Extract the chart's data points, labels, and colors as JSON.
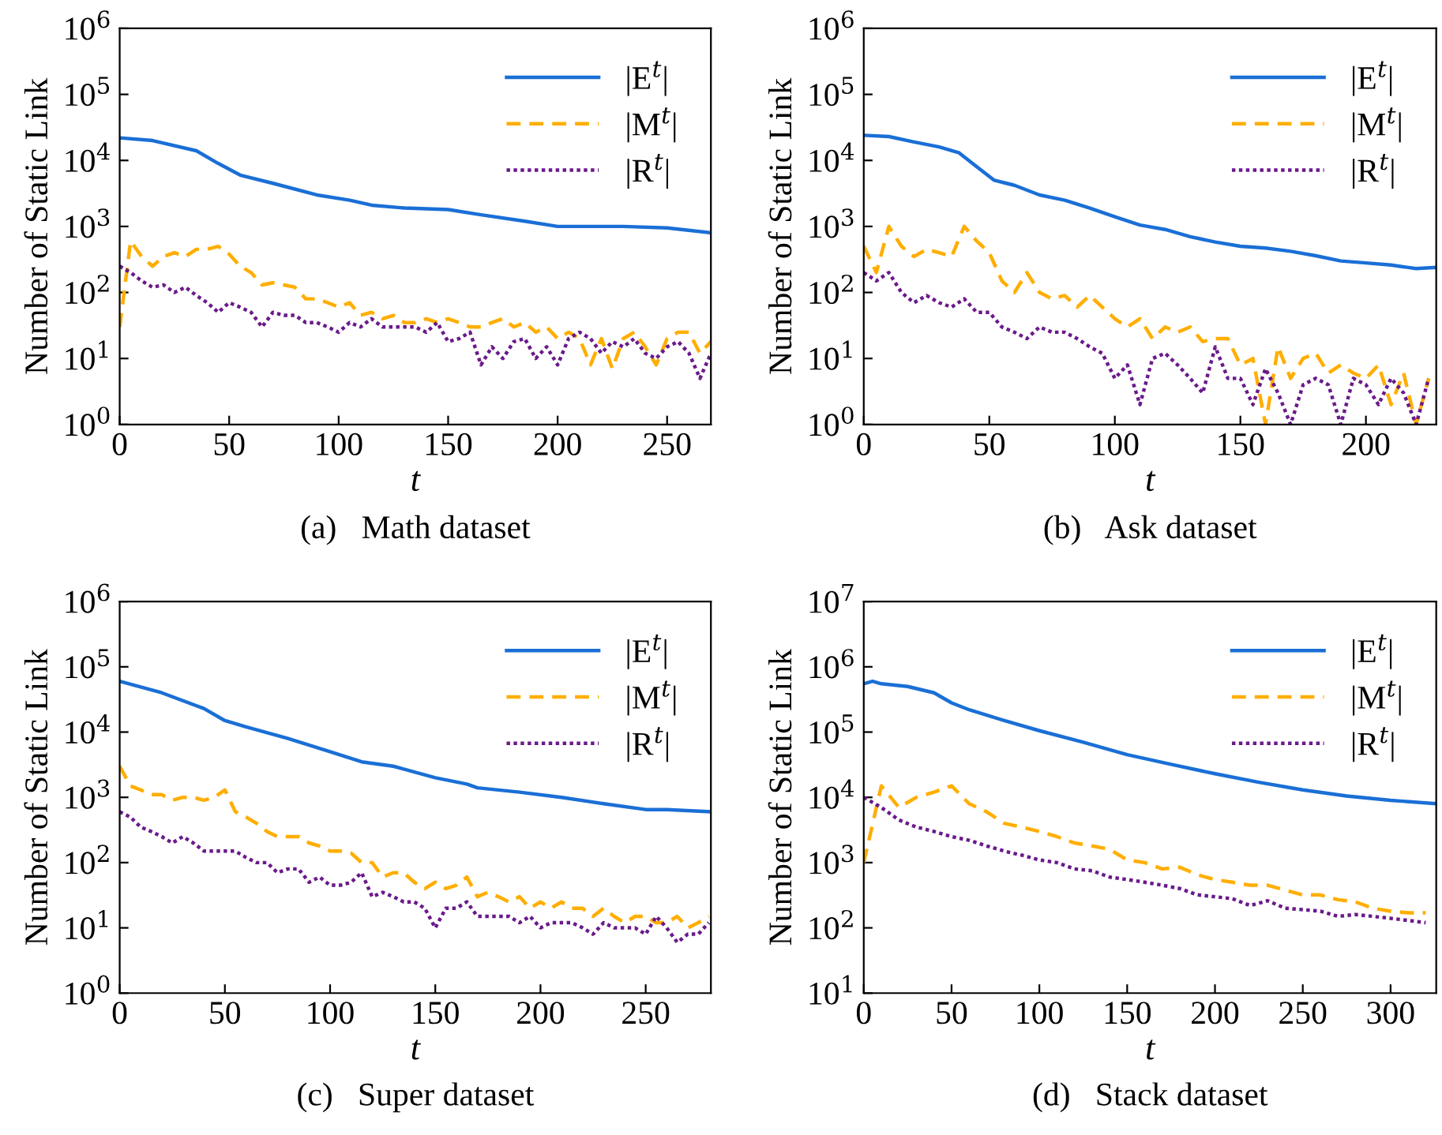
{
  "chart_data": [
    {
      "type": "line",
      "title": "(a)   Math dataset",
      "xlabel": "t",
      "ylabel": "Number of Static Link",
      "log": "y",
      "legend": "top right",
      "grid": false,
      "xlim": [
        0,
        270
      ],
      "xticks": [
        0,
        50,
        100,
        150,
        200,
        250
      ],
      "ylim": [
        1,
        1000000
      ],
      "yticks": [
        {
          "value": 1,
          "label": "10$^{0}$"
        },
        {
          "value": 10,
          "label": "10$^{1}$"
        },
        {
          "value": 100,
          "label": "10$^{2}$"
        },
        {
          "value": 1000,
          "label": "10$^{3}$"
        },
        {
          "value": 10000,
          "label": "10$^{4}$"
        },
        {
          "value": 100000,
          "label": "10$^{5}$"
        },
        {
          "value": 1000000,
          "label": "10$^{6}$"
        }
      ],
      "series": [
        {
          "name": "|E$^{t}$|",
          "color": "#1a6fd6",
          "line_style": "solid",
          "x": [
            0,
            15,
            35,
            45,
            55,
            70,
            90,
            105,
            115,
            130,
            150,
            165,
            185,
            200,
            230,
            250,
            270
          ],
          "values": [
            22000,
            20000,
            14000,
            9000,
            6000,
            4500,
            3000,
            2500,
            2100,
            1900,
            1800,
            1500,
            1200,
            1000,
            1000,
            950,
            800
          ]
        },
        {
          "name": "|M$^{t}$|",
          "color": "#ffae00",
          "line_style": "dashed",
          "x": [
            0,
            5,
            10,
            15,
            20,
            25,
            30,
            35,
            40,
            45,
            50,
            55,
            60,
            65,
            70,
            75,
            80,
            85,
            90,
            95,
            100,
            105,
            110,
            115,
            120,
            125,
            130,
            135,
            140,
            145,
            150,
            155,
            160,
            165,
            170,
            175,
            180,
            185,
            190,
            195,
            200,
            205,
            210,
            215,
            220,
            225,
            230,
            235,
            240,
            245,
            250,
            255,
            260,
            265,
            270
          ],
          "values": [
            30,
            600,
            350,
            250,
            350,
            400,
            350,
            450,
            450,
            500,
            380,
            250,
            200,
            130,
            140,
            130,
            120,
            80,
            80,
            70,
            60,
            70,
            45,
            50,
            40,
            45,
            35,
            35,
            40,
            35,
            40,
            35,
            30,
            30,
            35,
            40,
            30,
            35,
            25,
            30,
            20,
            25,
            20,
            8,
            20,
            7,
            20,
            25,
            15,
            8,
            20,
            25,
            25,
            12,
            18
          ]
        },
        {
          "name": "|R$^{t}$|",
          "color": "#6a1a8a",
          "line_style": "dotted",
          "x": [
            0,
            5,
            10,
            15,
            20,
            25,
            30,
            35,
            40,
            45,
            50,
            55,
            60,
            65,
            70,
            75,
            80,
            85,
            90,
            95,
            100,
            105,
            110,
            115,
            120,
            125,
            130,
            135,
            140,
            145,
            150,
            155,
            160,
            165,
            170,
            175,
            180,
            185,
            190,
            195,
            200,
            205,
            210,
            215,
            220,
            225,
            230,
            235,
            240,
            245,
            250,
            255,
            260,
            265,
            270
          ],
          "values": [
            250,
            200,
            150,
            120,
            130,
            100,
            120,
            90,
            70,
            50,
            70,
            60,
            50,
            30,
            50,
            45,
            45,
            35,
            35,
            30,
            25,
            35,
            30,
            40,
            30,
            30,
            30,
            30,
            25,
            35,
            18,
            20,
            25,
            8,
            15,
            10,
            18,
            20,
            10,
            15,
            8,
            20,
            25,
            20,
            12,
            18,
            15,
            20,
            12,
            10,
            15,
            18,
            12,
            5,
            12
          ]
        }
      ]
    },
    {
      "type": "line",
      "title": "(b)   Ask dataset",
      "xlabel": "t",
      "ylabel": "Number of Static Link",
      "log": "y",
      "legend": "top right",
      "grid": false,
      "xlim": [
        0,
        228
      ],
      "xticks": [
        0,
        50,
        100,
        150,
        200
      ],
      "ylim": [
        1,
        1000000
      ],
      "yticks": [
        {
          "value": 1,
          "label": "10$^{0}$"
        },
        {
          "value": 10,
          "label": "10$^{1}$"
        },
        {
          "value": 100,
          "label": "10$^{2}$"
        },
        {
          "value": 1000,
          "label": "10$^{3}$"
        },
        {
          "value": 10000,
          "label": "10$^{4}$"
        },
        {
          "value": 100000,
          "label": "10$^{5}$"
        },
        {
          "value": 1000000,
          "label": "10$^{6}$"
        }
      ],
      "series": [
        {
          "name": "|E$^{t}$|",
          "color": "#1a6fd6",
          "line_style": "solid",
          "x": [
            0,
            10,
            20,
            30,
            38,
            45,
            52,
            60,
            70,
            80,
            90,
            100,
            110,
            120,
            130,
            140,
            150,
            160,
            170,
            180,
            190,
            200,
            210,
            220,
            228
          ],
          "values": [
            24000,
            23000,
            19000,
            16000,
            13000,
            8000,
            5000,
            4200,
            3000,
            2500,
            1900,
            1400,
            1050,
            900,
            700,
            580,
            500,
            470,
            420,
            360,
            300,
            280,
            260,
            230,
            240
          ]
        },
        {
          "name": "|M$^{t}$|",
          "color": "#ffae00",
          "line_style": "dashed",
          "x": [
            0,
            5,
            10,
            15,
            20,
            25,
            30,
            35,
            40,
            45,
            50,
            55,
            60,
            65,
            70,
            75,
            80,
            85,
            90,
            95,
            100,
            105,
            110,
            115,
            120,
            125,
            130,
            135,
            140,
            145,
            150,
            155,
            160,
            165,
            170,
            175,
            180,
            185,
            190,
            195,
            200,
            205,
            210,
            215,
            220,
            225
          ],
          "values": [
            500,
            200,
            1000,
            500,
            350,
            450,
            400,
            350,
            1000,
            600,
            400,
            150,
            100,
            200,
            100,
            80,
            90,
            60,
            90,
            60,
            40,
            30,
            40,
            20,
            30,
            25,
            30,
            18,
            20,
            20,
            8,
            10,
            1,
            15,
            5,
            10,
            12,
            6,
            8,
            6,
            5,
            8,
            2,
            6,
            1,
            5
          ]
        },
        {
          "name": "|R$^{t}$|",
          "color": "#6a1a8a",
          "line_style": "dotted",
          "x": [
            0,
            5,
            10,
            15,
            20,
            25,
            30,
            35,
            40,
            45,
            50,
            55,
            60,
            65,
            70,
            75,
            80,
            85,
            90,
            95,
            100,
            105,
            110,
            115,
            120,
            125,
            130,
            135,
            140,
            145,
            150,
            155,
            160,
            165,
            170,
            175,
            180,
            185,
            190,
            195,
            200,
            205,
            210,
            215,
            220,
            225
          ],
          "values": [
            200,
            150,
            200,
            100,
            70,
            90,
            70,
            60,
            80,
            50,
            50,
            30,
            25,
            20,
            30,
            25,
            25,
            20,
            15,
            12,
            5,
            8,
            2,
            10,
            12,
            8,
            5,
            3,
            15,
            5,
            5,
            2,
            7,
            3,
            1,
            4,
            5,
            4,
            1,
            5,
            4,
            2,
            5,
            3,
            1,
            5
          ]
        }
      ]
    },
    {
      "type": "line",
      "title": "(c)   Super dataset",
      "xlabel": "t",
      "ylabel": "Number of Static Link",
      "log": "y",
      "legend": "top right",
      "grid": false,
      "xlim": [
        0,
        281
      ],
      "xticks": [
        0,
        50,
        100,
        150,
        200,
        250
      ],
      "ylim": [
        1,
        1000000
      ],
      "yticks": [
        {
          "value": 1,
          "label": "10$^{0}$"
        },
        {
          "value": 10,
          "label": "10$^{1}$"
        },
        {
          "value": 100,
          "label": "10$^{2}$"
        },
        {
          "value": 1000,
          "label": "10$^{3}$"
        },
        {
          "value": 10000,
          "label": "10$^{4}$"
        },
        {
          "value": 100000,
          "label": "10$^{5}$"
        },
        {
          "value": 1000000,
          "label": "10$^{6}$"
        }
      ],
      "series": [
        {
          "name": "|E$^{t}$|",
          "color": "#1a6fd6",
          "line_style": "solid",
          "x": [
            0,
            20,
            40,
            50,
            60,
            80,
            100,
            115,
            130,
            150,
            165,
            170,
            190,
            210,
            230,
            250,
            260,
            281
          ],
          "values": [
            60000,
            40000,
            23000,
            15000,
            12000,
            8000,
            5000,
            3500,
            3000,
            2000,
            1600,
            1400,
            1200,
            1000,
            800,
            650,
            650,
            600
          ]
        },
        {
          "name": "|M$^{t}$|",
          "color": "#ffae00",
          "line_style": "dashed",
          "x": [
            0,
            5,
            10,
            15,
            20,
            25,
            30,
            35,
            40,
            45,
            50,
            55,
            60,
            65,
            70,
            75,
            80,
            85,
            90,
            95,
            100,
            105,
            110,
            115,
            120,
            125,
            130,
            135,
            140,
            145,
            150,
            155,
            160,
            165,
            170,
            175,
            180,
            185,
            190,
            195,
            200,
            205,
            210,
            215,
            220,
            225,
            230,
            235,
            240,
            245,
            250,
            255,
            260,
            265,
            270,
            275,
            280
          ],
          "values": [
            3000,
            1500,
            1300,
            1100,
            1100,
            900,
            1000,
            1000,
            900,
            1000,
            1300,
            600,
            500,
            400,
            300,
            250,
            250,
            250,
            200,
            180,
            150,
            150,
            140,
            100,
            100,
            60,
            70,
            70,
            50,
            40,
            50,
            40,
            45,
            60,
            30,
            35,
            30,
            25,
            30,
            20,
            25,
            20,
            25,
            20,
            20,
            15,
            20,
            15,
            12,
            15,
            15,
            12,
            12,
            15,
            10,
            12,
            15
          ]
        },
        {
          "name": "|R$^{t}$|",
          "color": "#6a1a8a",
          "line_style": "dotted",
          "x": [
            0,
            5,
            10,
            15,
            20,
            25,
            30,
            35,
            40,
            45,
            50,
            55,
            60,
            65,
            70,
            75,
            80,
            85,
            90,
            95,
            100,
            105,
            110,
            115,
            120,
            125,
            130,
            135,
            140,
            145,
            150,
            155,
            160,
            165,
            170,
            175,
            180,
            185,
            190,
            195,
            200,
            205,
            210,
            215,
            220,
            225,
            230,
            235,
            240,
            245,
            250,
            255,
            260,
            265,
            270,
            275,
            280
          ],
          "values": [
            600,
            500,
            350,
            300,
            250,
            200,
            250,
            200,
            150,
            150,
            150,
            150,
            120,
            100,
            100,
            70,
            80,
            80,
            50,
            60,
            45,
            45,
            50,
            70,
            30,
            35,
            30,
            25,
            25,
            20,
            10,
            20,
            20,
            25,
            15,
            15,
            15,
            15,
            12,
            15,
            10,
            12,
            12,
            12,
            10,
            8,
            12,
            10,
            10,
            10,
            8,
            15,
            10,
            6,
            8,
            8,
            12
          ]
        }
      ]
    },
    {
      "type": "line",
      "title": "(d)   Stack dataset",
      "xlabel": "t",
      "ylabel": "Number of Static Link",
      "log": "y",
      "legend": "top right",
      "grid": false,
      "xlim": [
        0,
        326
      ],
      "xticks": [
        0,
        50,
        100,
        150,
        200,
        250,
        300
      ],
      "ylim": [
        10,
        10000000
      ],
      "yticks": [
        {
          "value": 10,
          "label": "10$^{1}$"
        },
        {
          "value": 100,
          "label": "10$^{2}$"
        },
        {
          "value": 1000,
          "label": "10$^{3}$"
        },
        {
          "value": 10000,
          "label": "10$^{4}$"
        },
        {
          "value": 100000,
          "label": "10$^{5}$"
        },
        {
          "value": 1000000,
          "label": "10$^{6}$"
        },
        {
          "value": 10000000,
          "label": "10$^{7}$"
        }
      ],
      "series": [
        {
          "name": "|E$^{t}$|",
          "color": "#1a6fd6",
          "line_style": "solid",
          "x": [
            0,
            5,
            10,
            25,
            40,
            50,
            60,
            80,
            100,
            125,
            150,
            175,
            200,
            225,
            250,
            275,
            300,
            326
          ],
          "values": [
            550000,
            600000,
            550000,
            500000,
            400000,
            280000,
            220000,
            150000,
            105000,
            70000,
            45000,
            32000,
            23000,
            17000,
            13000,
            10500,
            9000,
            8000
          ]
        },
        {
          "name": "|M$^{t}$|",
          "color": "#ffae00",
          "line_style": "dashed",
          "x": [
            0,
            10,
            20,
            30,
            40,
            50,
            60,
            70,
            80,
            90,
            100,
            110,
            120,
            130,
            140,
            150,
            160,
            170,
            180,
            190,
            200,
            210,
            220,
            230,
            240,
            250,
            260,
            270,
            280,
            290,
            300,
            310,
            320
          ],
          "values": [
            1000,
            15000,
            7000,
            10000,
            12000,
            15000,
            8000,
            6000,
            4000,
            3500,
            3000,
            2500,
            2000,
            1800,
            1600,
            1100,
            1000,
            800,
            850,
            650,
            550,
            500,
            450,
            450,
            380,
            320,
            320,
            270,
            250,
            200,
            180,
            170,
            170
          ]
        },
        {
          "name": "|R$^{t}$|",
          "color": "#6a1a8a",
          "line_style": "dotted",
          "x": [
            0,
            10,
            20,
            30,
            40,
            50,
            60,
            70,
            80,
            90,
            100,
            110,
            120,
            130,
            140,
            150,
            160,
            170,
            180,
            190,
            200,
            210,
            220,
            230,
            240,
            250,
            260,
            270,
            280,
            290,
            300,
            310,
            320
          ],
          "values": [
            10000,
            7000,
            4500,
            3500,
            3000,
            2500,
            2200,
            1800,
            1500,
            1300,
            1100,
            1000,
            800,
            750,
            600,
            550,
            500,
            450,
            400,
            320,
            300,
            280,
            220,
            260,
            200,
            190,
            180,
            150,
            160,
            150,
            140,
            130,
            120
          ]
        }
      ]
    }
  ]
}
